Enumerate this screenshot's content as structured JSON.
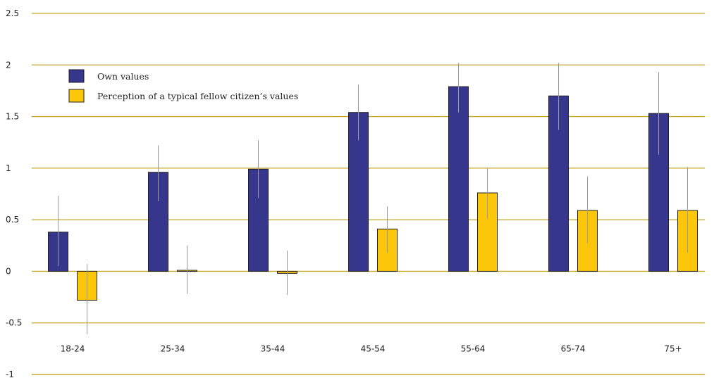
{
  "chart_data": {
    "type": "bar",
    "title": "",
    "xlabel": "",
    "ylabel": "",
    "ylim": [
      -1,
      2.5
    ],
    "yticks": [
      "2.5",
      "2",
      "1.5",
      "1",
      "0.5",
      "0",
      "-0.5",
      "-1"
    ],
    "ytick_values": [
      2.5,
      2,
      1.5,
      1,
      0.5,
      0,
      -0.5,
      -1
    ],
    "categories": [
      "18-24",
      "25-34",
      "35-44",
      "45-54",
      "55-64",
      "65-74",
      "75+"
    ],
    "grid": "horizontal",
    "legend_position": "top-left",
    "series": [
      {
        "name": "Own values",
        "color": "#35368c",
        "values": [
          0.38,
          0.96,
          0.99,
          1.54,
          1.79,
          1.7,
          1.53
        ],
        "error_low": [
          0.05,
          0.68,
          0.71,
          1.27,
          1.54,
          1.37,
          1.13
        ],
        "error_high": [
          0.73,
          1.22,
          1.27,
          1.81,
          2.02,
          2.02,
          1.93
        ]
      },
      {
        "name": "Perception of a typical fellow citizen’s values",
        "color": "#fcc60a",
        "values": [
          -0.28,
          0.01,
          -0.02,
          0.41,
          0.76,
          0.59,
          0.59
        ],
        "error_low": [
          -0.61,
          -0.22,
          -0.23,
          0.18,
          0.51,
          0.27,
          0.18
        ],
        "error_high": [
          0.07,
          0.25,
          0.2,
          0.63,
          1.0,
          0.92,
          1.01
        ]
      }
    ]
  }
}
